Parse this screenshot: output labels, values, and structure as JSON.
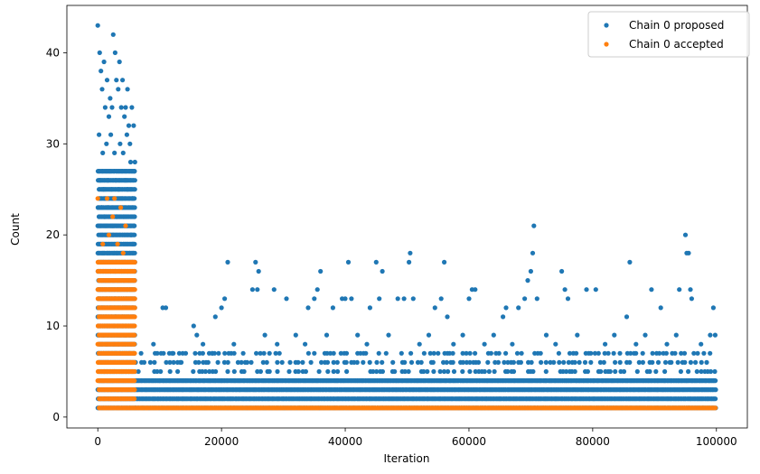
{
  "chart_data": {
    "type": "scatter",
    "xlabel": "Iteration",
    "ylabel": "Count",
    "xlim": [
      -5000,
      105000
    ],
    "ylim": [
      -1.2,
      45.2
    ],
    "xticks": [
      0,
      20000,
      40000,
      60000,
      80000,
      100000
    ],
    "xtick_labels": [
      "0",
      "20000",
      "40000",
      "60000",
      "80000",
      "100000"
    ],
    "yticks": [
      0,
      10,
      20,
      30,
      40
    ],
    "ytick_labels": [
      "0",
      "10",
      "20",
      "30",
      "40"
    ],
    "legend_position": "top-right",
    "grid": false,
    "series": [
      {
        "name": "Chain 0 proposed",
        "color": "#1f77b4",
        "points": [
          [
            0,
            43
          ],
          [
            300,
            40
          ],
          [
            500,
            38
          ],
          [
            700,
            36
          ],
          [
            1000,
            39
          ],
          [
            1200,
            34
          ],
          [
            1500,
            37
          ],
          [
            1800,
            33
          ],
          [
            2000,
            35
          ],
          [
            2300,
            34
          ],
          [
            2500,
            42
          ],
          [
            2800,
            40
          ],
          [
            3000,
            37
          ],
          [
            3300,
            36
          ],
          [
            3500,
            39
          ],
          [
            3800,
            34
          ],
          [
            4000,
            37
          ],
          [
            4300,
            33
          ],
          [
            4500,
            34
          ],
          [
            4800,
            36
          ],
          [
            5000,
            32
          ],
          [
            5200,
            30
          ],
          [
            5500,
            34
          ],
          [
            5800,
            32
          ],
          [
            6000,
            28
          ],
          [
            200,
            31
          ],
          [
            800,
            29
          ],
          [
            1400,
            30
          ],
          [
            2100,
            31
          ],
          [
            2700,
            29
          ],
          [
            3600,
            30
          ],
          [
            4100,
            29
          ],
          [
            4700,
            31
          ],
          [
            5300,
            28
          ],
          [
            5900,
            27
          ],
          [
            400,
            26
          ],
          [
            900,
            25
          ],
          [
            1600,
            26
          ],
          [
            2200,
            25
          ],
          [
            2900,
            26
          ],
          [
            3400,
            25
          ],
          [
            3900,
            24
          ],
          [
            4400,
            26
          ],
          [
            4900,
            25
          ],
          [
            5600,
            24
          ],
          [
            600,
            23
          ],
          [
            1100,
            22
          ],
          [
            1700,
            23
          ],
          [
            2400,
            21
          ],
          [
            3100,
            22
          ],
          [
            3700,
            23
          ],
          [
            4200,
            22
          ],
          [
            4600,
            21
          ],
          [
            5400,
            20
          ],
          [
            5700,
            19
          ],
          [
            21000,
            17
          ],
          [
            25500,
            17
          ],
          [
            26000,
            16
          ],
          [
            36000,
            16
          ],
          [
            40500,
            17
          ],
          [
            45000,
            17
          ],
          [
            46000,
            16
          ],
          [
            50500,
            18
          ],
          [
            50300,
            17
          ],
          [
            56000,
            17
          ],
          [
            70500,
            21
          ],
          [
            70300,
            18
          ],
          [
            70000,
            16
          ],
          [
            75000,
            16
          ],
          [
            86000,
            17
          ],
          [
            95000,
            20
          ],
          [
            95200,
            18
          ],
          [
            95500,
            18
          ],
          [
            10500,
            12
          ],
          [
            11000,
            12
          ],
          [
            15500,
            10
          ],
          [
            16000,
            9
          ],
          [
            19000,
            11
          ],
          [
            20000,
            12
          ],
          [
            20500,
            13
          ],
          [
            25000,
            14
          ],
          [
            25800,
            14
          ],
          [
            28500,
            14
          ],
          [
            30500,
            13
          ],
          [
            34000,
            12
          ],
          [
            35000,
            13
          ],
          [
            35500,
            14
          ],
          [
            38000,
            12
          ],
          [
            39500,
            13
          ],
          [
            40000,
            13
          ],
          [
            41000,
            13
          ],
          [
            44000,
            12
          ],
          [
            45500,
            13
          ],
          [
            48500,
            13
          ],
          [
            49500,
            13
          ],
          [
            51000,
            13
          ],
          [
            54500,
            12
          ],
          [
            55500,
            13
          ],
          [
            56500,
            11
          ],
          [
            60000,
            13
          ],
          [
            60500,
            14
          ],
          [
            61000,
            14
          ],
          [
            65500,
            11
          ],
          [
            66000,
            12
          ],
          [
            68000,
            12
          ],
          [
            69000,
            13
          ],
          [
            69500,
            15
          ],
          [
            71000,
            13
          ],
          [
            75500,
            14
          ],
          [
            76000,
            13
          ],
          [
            79000,
            14
          ],
          [
            80500,
            14
          ],
          [
            85500,
            11
          ],
          [
            89500,
            14
          ],
          [
            91000,
            12
          ],
          [
            94000,
            14
          ],
          [
            95800,
            14
          ],
          [
            96000,
            13
          ],
          [
            99500,
            12
          ],
          [
            9000,
            8
          ],
          [
            12000,
            7
          ],
          [
            13500,
            6
          ],
          [
            17000,
            8
          ],
          [
            18500,
            7
          ],
          [
            22000,
            8
          ],
          [
            23500,
            7
          ],
          [
            27000,
            9
          ],
          [
            29000,
            8
          ],
          [
            32000,
            9
          ],
          [
            33500,
            8
          ],
          [
            37000,
            9
          ],
          [
            42000,
            9
          ],
          [
            43500,
            8
          ],
          [
            47000,
            9
          ],
          [
            52000,
            8
          ],
          [
            53500,
            9
          ],
          [
            57500,
            8
          ],
          [
            59000,
            9
          ],
          [
            62500,
            8
          ],
          [
            64000,
            9
          ],
          [
            67000,
            8
          ],
          [
            72500,
            9
          ],
          [
            74000,
            8
          ],
          [
            77500,
            9
          ],
          [
            82000,
            8
          ],
          [
            83500,
            9
          ],
          [
            87000,
            8
          ],
          [
            88500,
            9
          ],
          [
            92000,
            8
          ],
          [
            93500,
            9
          ],
          [
            97500,
            8
          ],
          [
            99000,
            9
          ],
          [
            99800,
            9
          ]
        ],
        "dense_band": [
          {
            "x_range": [
              0,
              6000
            ],
            "y_values": [
              1,
              2,
              3,
              4,
              5,
              6,
              7,
              8,
              9,
              10,
              11,
              12,
              13,
              14,
              15,
              16,
              17,
              18,
              19,
              20,
              21,
              22,
              23,
              24,
              25,
              26,
              27
            ]
          },
          {
            "x_range": [
              6000,
              100000
            ],
            "y_values": [
              1,
              2,
              3,
              4
            ]
          },
          {
            "x_range": [
              6000,
              100000
            ],
            "y_values": [
              5,
              6,
              7
            ],
            "density": "medium"
          }
        ]
      },
      {
        "name": "Chain 0 accepted",
        "color": "#ff7f0e",
        "points": [
          [
            0,
            24
          ],
          [
            1500,
            24
          ],
          [
            2700,
            24
          ],
          [
            3700,
            23
          ],
          [
            2400,
            22
          ],
          [
            4500,
            21
          ],
          [
            1800,
            20
          ],
          [
            3200,
            19
          ],
          [
            4100,
            18
          ],
          [
            800,
            19
          ],
          [
            5600,
            17
          ]
        ],
        "dense_band": [
          {
            "x_range": [
              0,
              6000
            ],
            "y_values": [
              1,
              2,
              3,
              4,
              5,
              6,
              7,
              8,
              9,
              10,
              11,
              12,
              13,
              14,
              15,
              16,
              17
            ]
          },
          {
            "x_range": [
              6000,
              100000
            ],
            "y_values": [
              1
            ]
          }
        ]
      }
    ]
  }
}
